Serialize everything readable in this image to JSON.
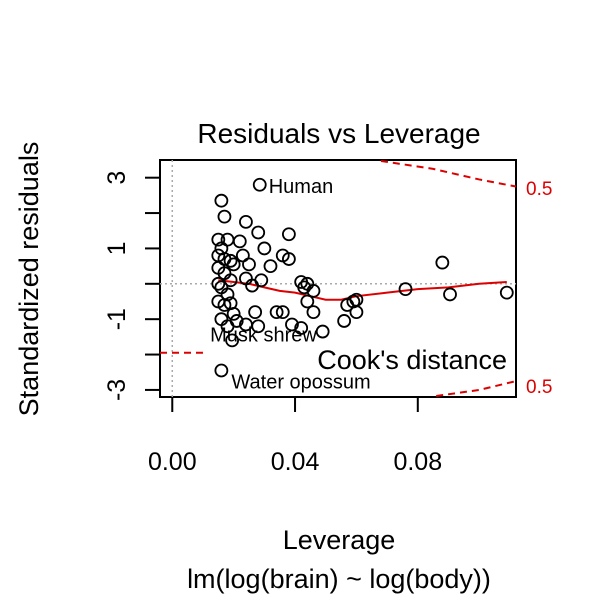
{
  "chart_data": {
    "type": "scatter",
    "title": "Residuals vs Leverage",
    "xlabel": "Leverage",
    "subtitle": "lm(log(brain) ~ log(body))",
    "ylabel": "Standardized residuals",
    "xlim": [
      -0.004,
      0.112
    ],
    "ylim": [
      -3.2,
      3.5
    ],
    "x_ticks": [
      0.0,
      0.04,
      0.08
    ],
    "x_tick_labels": [
      "0.00",
      "0.04",
      "0.08"
    ],
    "y_ticks": [
      3,
      1,
      -1,
      -3
    ],
    "y_tick_labels": [
      "3",
      "1",
      "-1",
      "-3"
    ],
    "grid": false,
    "reference_lines": {
      "x": 0,
      "y": 0
    },
    "points": [
      {
        "x": 0.016,
        "y": 2.35
      },
      {
        "x": 0.017,
        "y": 1.9
      },
      {
        "x": 0.015,
        "y": 1.25
      },
      {
        "x": 0.018,
        "y": 1.25
      },
      {
        "x": 0.016,
        "y": 1.0
      },
      {
        "x": 0.015,
        "y": 0.8
      },
      {
        "x": 0.017,
        "y": 0.7
      },
      {
        "x": 0.019,
        "y": 0.65
      },
      {
        "x": 0.02,
        "y": 0.55
      },
      {
        "x": 0.015,
        "y": 0.45
      },
      {
        "x": 0.017,
        "y": 0.3
      },
      {
        "x": 0.019,
        "y": 0.1
      },
      {
        "x": 0.015,
        "y": 0.0
      },
      {
        "x": 0.016,
        "y": -0.1
      },
      {
        "x": 0.018,
        "y": -0.3
      },
      {
        "x": 0.015,
        "y": -0.5
      },
      {
        "x": 0.017,
        "y": -0.6
      },
      {
        "x": 0.019,
        "y": -0.55
      },
      {
        "x": 0.02,
        "y": -0.85
      },
      {
        "x": 0.016,
        "y": -1.0
      },
      {
        "x": 0.018,
        "y": -1.2
      },
      {
        "x": 0.021,
        "y": -1.05
      },
      {
        "x": 0.024,
        "y": 1.75
      },
      {
        "x": 0.022,
        "y": 1.2
      },
      {
        "x": 0.023,
        "y": 0.8
      },
      {
        "x": 0.025,
        "y": 0.55
      },
      {
        "x": 0.024,
        "y": 0.15
      },
      {
        "x": 0.026,
        "y": -0.05
      },
      {
        "x": 0.028,
        "y": 1.45
      },
      {
        "x": 0.03,
        "y": 1.0
      },
      {
        "x": 0.032,
        "y": 0.5
      },
      {
        "x": 0.029,
        "y": 0.1
      },
      {
        "x": 0.027,
        "y": -0.8
      },
      {
        "x": 0.024,
        "y": -1.15
      },
      {
        "x": 0.028,
        "y": -1.2
      },
      {
        "x": 0.034,
        "y": -0.8
      },
      {
        "x": 0.036,
        "y": 0.8
      },
      {
        "x": 0.038,
        "y": 0.7
      },
      {
        "x": 0.038,
        "y": 1.4
      },
      {
        "x": 0.036,
        "y": -0.8
      },
      {
        "x": 0.039,
        "y": -1.15
      },
      {
        "x": 0.042,
        "y": -1.25
      },
      {
        "x": 0.042,
        "y": 0.05
      },
      {
        "x": 0.044,
        "y": 0.0
      },
      {
        "x": 0.046,
        "y": -0.2
      },
      {
        "x": 0.044,
        "y": -0.5
      },
      {
        "x": 0.046,
        "y": -0.8
      },
      {
        "x": 0.049,
        "y": -1.35
      },
      {
        "x": 0.043,
        "y": -0.1
      },
      {
        "x": 0.056,
        "y": -1.05
      },
      {
        "x": 0.057,
        "y": -0.6
      },
      {
        "x": 0.059,
        "y": -0.5
      },
      {
        "x": 0.06,
        "y": -0.45
      },
      {
        "x": 0.06,
        "y": -0.8
      },
      {
        "x": 0.076,
        "y": -0.15
      },
      {
        "x": 0.088,
        "y": 0.6
      },
      {
        "x": 0.0905,
        "y": -0.3
      },
      {
        "x": 0.109,
        "y": -0.25
      },
      {
        "x": 0.0285,
        "y": 2.8
      },
      {
        "x": 0.0195,
        "y": -1.6
      },
      {
        "x": 0.016,
        "y": -2.45
      }
    ],
    "labeled_points": [
      {
        "name": "Human",
        "x": 0.0285,
        "y": 2.8
      },
      {
        "name": "Musk shrew",
        "x": 0.0195,
        "y": -1.6
      },
      {
        "name": "Water opossum",
        "x": 0.016,
        "y": -2.45
      }
    ],
    "smoother": {
      "color": "#dd0000",
      "x": [
        0.015,
        0.02,
        0.025,
        0.03,
        0.035,
        0.04,
        0.045,
        0.05,
        0.055,
        0.06,
        0.07,
        0.08,
        0.09,
        0.1,
        0.109
      ],
      "y": [
        0.1,
        0.05,
        0.0,
        -0.1,
        -0.2,
        -0.25,
        -0.35,
        -0.45,
        -0.45,
        -0.35,
        -0.25,
        -0.15,
        -0.1,
        0.0,
        0.05
      ]
    },
    "cooks_distance": {
      "label": "Cook's distance",
      "color": "#dd0000",
      "level_labels": [
        "0.5",
        "0.5"
      ],
      "upper": {
        "x": [
          0.068,
          0.085,
          0.1,
          0.112
        ],
        "y": [
          3.6,
          3.25,
          2.95,
          2.75
        ]
      },
      "lower": {
        "x": [
          0.086,
          0.1,
          0.112
        ],
        "y": [
          -3.2,
          -3.0,
          -2.75
        ]
      },
      "left_lower": {
        "x": [
          -0.004,
          0.01
        ],
        "y": [
          -1.95,
          -1.95
        ]
      }
    }
  }
}
